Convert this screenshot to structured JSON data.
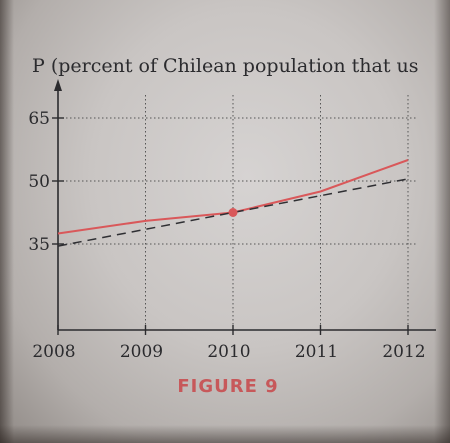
{
  "chart_data": {
    "type": "line",
    "title": "P (percent of Chilean population that us",
    "caption": "FIGURE 9",
    "x": [
      2008,
      2009,
      2010,
      2011,
      2012
    ],
    "x_tick_labels": [
      "2008",
      "2009",
      "2010",
      "2011",
      "2012"
    ],
    "y_tick_labels": [
      "35",
      "50",
      "65"
    ],
    "y_ticks": [
      35,
      50,
      65
    ],
    "xlim": [
      2008,
      2012.3
    ],
    "ylim": [
      20,
      70
    ],
    "grid": true,
    "series": [
      {
        "style": "solid",
        "color": "#d9585a",
        "x": [
          2008,
          2009,
          2010,
          2011,
          2012
        ],
        "values": [
          37.5,
          40.5,
          42.5,
          47.5,
          55
        ]
      },
      {
        "style": "dashed",
        "color": "#2f2f33",
        "x": [
          2008,
          2009,
          2010,
          2011,
          2012
        ],
        "values": [
          34.5,
          38.5,
          42.5,
          46.5,
          50.5
        ]
      }
    ],
    "highlight_point": {
      "x": 2010,
      "y": 42.5,
      "color": "#d9585a"
    }
  }
}
